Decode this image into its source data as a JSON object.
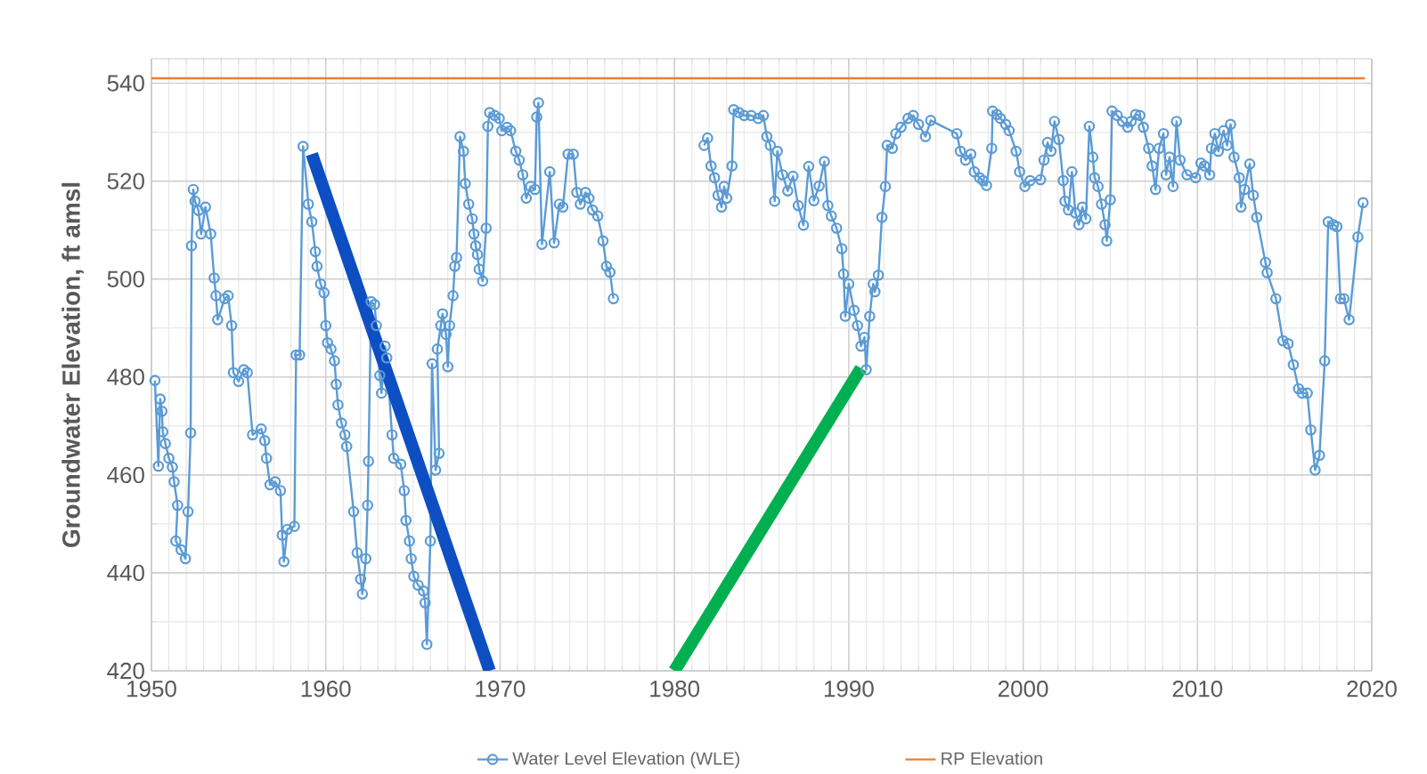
{
  "chart_data": {
    "type": "line",
    "ylabel": "Groundwater Elevation, ft amsl",
    "xlim": [
      1950,
      2020
    ],
    "ylim": [
      420,
      545
    ],
    "xticks": [
      1950,
      1960,
      1970,
      1980,
      1990,
      2000,
      2010,
      2020
    ],
    "yticks": [
      420,
      440,
      460,
      480,
      500,
      520,
      540
    ],
    "grid": true,
    "legend": "bottom",
    "marker": "circle",
    "series": [
      {
        "name": "Water Level Elevation (WLE)",
        "color": "#5b9bd5",
        "x": [
          1950.2,
          1950.4,
          1950.5,
          1950.6,
          1950.65,
          1950.8,
          1951.0,
          1951.2,
          1951.3,
          1951.5,
          1951.4,
          1951.7,
          1951.95,
          1952.1,
          1952.25,
          1952.3,
          1952.4,
          1952.5,
          1952.7,
          1952.85,
          1953.1,
          1953.4,
          1953.6,
          1953.7,
          1953.8,
          1954.2,
          1954.4,
          1954.6,
          1954.7,
          1955.0,
          1955.3,
          1955.5,
          1955.8,
          1956.3,
          1956.5,
          1956.6,
          1956.8,
          1957.1,
          1957.4,
          1957.5,
          1957.6,
          1957.8,
          1958.2,
          1958.3,
          1958.5,
          1958.7,
          1959.0,
          1959.2,
          1959.4,
          1959.5,
          1959.7,
          1959.9,
          1960.0,
          1960.1,
          1960.3,
          1960.5,
          1960.6,
          1960.7,
          1960.9,
          1961.1,
          1961.2,
          1961.6,
          1961.8,
          1962.0,
          1962.1,
          1962.3,
          1962.4,
          1962.45,
          1962.6,
          1962.8,
          1962.9,
          1963.1,
          1963.2,
          1963.4,
          1963.5,
          1963.8,
          1963.9,
          1964.3,
          1964.5,
          1964.6,
          1964.8,
          1964.9,
          1965.05,
          1965.3,
          1965.6,
          1965.7,
          1965.8,
          1966.0,
          1966.1,
          1966.3,
          1966.5,
          1966.4,
          1966.6,
          1966.7,
          1966.9,
          1967.0,
          1967.1,
          1967.3,
          1967.4,
          1967.5,
          1967.7,
          1967.9,
          1968.0,
          1968.2,
          1968.4,
          1968.5,
          1968.6,
          1968.7,
          1968.8,
          1969.0,
          1969.2,
          1969.3,
          1969.4,
          1969.7,
          1969.95,
          1970.1,
          1970.4,
          1970.6,
          1970.9,
          1971.1,
          1971.3,
          1971.5,
          1971.75,
          1972.0,
          1972.1,
          1972.2,
          1972.4,
          1972.85,
          1973.1,
          1973.4,
          1973.6,
          1973.9,
          1974.2,
          1974.4,
          1974.6,
          1974.9,
          1975.1,
          1975.3,
          1975.6,
          1975.9,
          1976.1,
          1976.3,
          1976.5,
          null,
          1981.7,
          1981.9,
          1982.1,
          1982.3,
          1982.5,
          1982.7,
          1982.85,
          1983.0,
          1983.3,
          1983.4,
          1983.7,
          1984.0,
          1984.4,
          1984.8,
          1985.1,
          1985.3,
          1985.5,
          1985.75,
          1985.9,
          1986.2,
          1986.5,
          1986.8,
          1987.1,
          1987.4,
          1987.7,
          1988.0,
          1988.3,
          1988.6,
          1988.8,
          1989.0,
          1989.3,
          1989.6,
          1989.7,
          1989.8,
          1990.0,
          1990.3,
          1990.5,
          1990.7,
          1990.9,
          1991.0,
          1991.2,
          1991.4,
          1991.5,
          1991.7,
          1991.9,
          1992.1,
          1992.2,
          1992.5,
          1992.7,
          1993.0,
          1993.4,
          1993.7,
          1994.0,
          1994.4,
          1994.7,
          1996.2,
          1996.4,
          1996.7,
          1997.0,
          1997.2,
          1997.5,
          1997.7,
          1997.9,
          1998.2,
          1998.25,
          1998.5,
          1998.7,
          1999.0,
          1999.2,
          1999.6,
          1999.8,
          2000.1,
          2000.4,
          2001.0,
          2001.2,
          2001.4,
          2001.6,
          2001.8,
          2002.05,
          2002.3,
          2002.4,
          2002.6,
          2002.8,
          2003.0,
          2003.2,
          2003.4,
          2003.6,
          2003.8,
          2004.0,
          2004.1,
          2004.3,
          2004.5,
          2004.7,
          2004.8,
          2005.0,
          2005.1,
          2005.4,
          2005.7,
          2006.0,
          2006.2,
          2006.45,
          2006.7,
          2006.9,
          2007.2,
          2007.4,
          2007.6,
          2007.8,
          2008.05,
          2008.2,
          2008.4,
          2008.6,
          2008.8,
          2009.0,
          2009.4,
          2009.9,
          2010.2,
          2010.4,
          2010.7,
          2010.8,
          2011.0,
          2011.2,
          2011.5,
          2011.7,
          2011.9,
          2012.1,
          2012.4,
          2012.5,
          2012.7,
          2013.0,
          2013.2,
          2013.4,
          2013.9,
          2014.0,
          2014.5,
          2014.9,
          2015.2,
          2015.5,
          2015.8,
          2016.0,
          2016.3,
          2016.5,
          2016.75,
          2017.0,
          2017.3,
          2017.5,
          2017.8,
          2018.0,
          2018.2,
          2018.4,
          2018.7,
          2019.2,
          2019.5
        ],
        "values": [
          479.3,
          461.8,
          475.5,
          473,
          468.8,
          466.4,
          463.4,
          461.6,
          458.6,
          453.8,
          446.5,
          444.7,
          442.9,
          452.5,
          468.6,
          506.8,
          518.3,
          515.9,
          514,
          509.2,
          514.7,
          509.2,
          500.2,
          496.6,
          491.7,
          496,
          496.6,
          490.5,
          480.9,
          479.1,
          481.5,
          480.9,
          468.2,
          469.4,
          467,
          463.4,
          458,
          458.6,
          456.8,
          447.7,
          442.3,
          448.9,
          449.5,
          484.5,
          484.5,
          527.1,
          515.3,
          511.7,
          505.6,
          502.6,
          499,
          497.2,
          490.5,
          487,
          485.7,
          483.3,
          478.5,
          474.3,
          470.6,
          468.2,
          465.8,
          452.5,
          444.1,
          438.7,
          435.7,
          442.9,
          453.8,
          462.8,
          495.4,
          494.8,
          490.5,
          480.3,
          476.7,
          486.3,
          483.9,
          468.2,
          463.4,
          462.2,
          456.8,
          450.7,
          446.5,
          442.9,
          439.3,
          437.5,
          436.3,
          433.9,
          425.4,
          446.5,
          482.7,
          461,
          464.4,
          485.7,
          490.5,
          492.9,
          488.7,
          482.1,
          490.5,
          496.6,
          502.6,
          504.4,
          529.1,
          526.1,
          519.5,
          515.3,
          512.3,
          509.2,
          506.8,
          505,
          502,
          499.6,
          510.4,
          531.2,
          534,
          533.4,
          532.8,
          530.3,
          531,
          530.3,
          526.1,
          524.3,
          521.3,
          516.5,
          518.9,
          518.3,
          533.1,
          536,
          507.1,
          521.9,
          507.4,
          515.3,
          514.7,
          525.5,
          525.5,
          517.7,
          515.3,
          517.7,
          516.5,
          514.1,
          512.9,
          507.8,
          502.6,
          501.4,
          496,
          null,
          527.3,
          528.8,
          523.1,
          520.7,
          517.1,
          514.7,
          518.9,
          516.5,
          523.1,
          534.6,
          534,
          533.4,
          533.4,
          532.8,
          533.4,
          529.1,
          527.3,
          515.9,
          526.1,
          521.3,
          518,
          521,
          515,
          511,
          523,
          516,
          519,
          524,
          515,
          512.9,
          510.4,
          506.2,
          501,
          492.4,
          499,
          493.6,
          490.5,
          486.3,
          488.1,
          481.5,
          492.4,
          499,
          497.4,
          500.8,
          512.6,
          518.9,
          527.3,
          526.7,
          529.7,
          531,
          532.8,
          533.4,
          531.6,
          529.1,
          532.4,
          529.7,
          526.1,
          524.3,
          525.5,
          521.9,
          520.7,
          520.1,
          519.1,
          526.7,
          534.3,
          533.6,
          532.8,
          531.6,
          530.3,
          526.1,
          521.9,
          518.9,
          520.1,
          520.3,
          524.3,
          527.9,
          526.1,
          532.2,
          528.5,
          520.1,
          515.9,
          514.1,
          521.9,
          513.5,
          511.1,
          514.7,
          512.3,
          531.2,
          524.9,
          520.7,
          518.9,
          515.3,
          511.1,
          507.8,
          516.2,
          534.3,
          533.4,
          532.2,
          531,
          532.2,
          533.6,
          533.4,
          531,
          526.7,
          523.1,
          518.3,
          526.7,
          529.7,
          521.3,
          524.9,
          518.9,
          532.2,
          524.3,
          521.3,
          520.7,
          523.7,
          523.1,
          521.3,
          526.7,
          529.7,
          526.1,
          530.3,
          527.3,
          531.6,
          524.9,
          520.7,
          514.7,
          518.3,
          523.5,
          517.1,
          512.6,
          503.4,
          501.3,
          496,
          487.4,
          486.8,
          482.5,
          477.6,
          476.7,
          476.7,
          469.2,
          461,
          464,
          483.3,
          511.7,
          511.1,
          510.7,
          496,
          496,
          491.7,
          508.6,
          515.6
        ]
      },
      {
        "name": "RP Elevation",
        "color": "#ed7d31",
        "marker": "none",
        "x": [
          1950,
          2019.6
        ],
        "values": [
          541,
          541
        ]
      },
      {
        "color": "#0d4fc2",
        "marker": "none",
        "x": [
          1959.2,
          1969.4
        ],
        "values": [
          525.5,
          420
        ]
      },
      {
        "color": "#00b050",
        "marker": "none",
        "x": [
          1980.0,
          1990.7
        ],
        "values": [
          420,
          481.8
        ]
      }
    ]
  }
}
